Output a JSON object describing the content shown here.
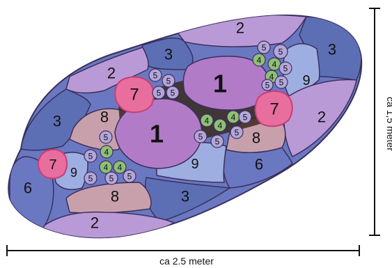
{
  "diagram": {
    "colors": {
      "outline": "#3b2f5c",
      "zone1": "#b27bc8",
      "zone2": "#b99ad6",
      "zone3": "#5c6fb5",
      "zone6": "#6a78c2",
      "zone7": "#e86e9e",
      "zone8": "#c8a0ac",
      "zone9": "#9eaee0",
      "cluster4": "#8fbf77",
      "cluster5": "#b4a6da",
      "dark_center": "#3a2a1e"
    },
    "zone_labels": {
      "z1a": "1",
      "z1b": "1",
      "z2_top": "2",
      "z2_left": "2",
      "z2_right": "2",
      "z2_bottom": "2",
      "z3_top": "3",
      "z3_left": "3",
      "z3_right": "3",
      "z3_bottom": "3",
      "z6_left": "6",
      "z6_right": "6",
      "z7_a": "7",
      "z7_b": "7",
      "z7_c": "7",
      "z8_a": "8",
      "z8_b": "8",
      "z8_c": "8",
      "z9_a": "9",
      "z9_b": "9",
      "z9_c": "9"
    },
    "cluster_labels": {
      "four": "4",
      "five": "5"
    },
    "dimensions": {
      "width_label": "ca 2.5 meter",
      "height_label": "ca 1,5 meter"
    }
  }
}
